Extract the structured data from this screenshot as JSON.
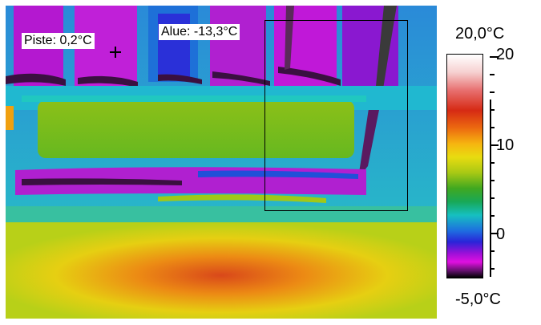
{
  "thermal_image": {
    "spot": {
      "label": "Piste: 0,2°C",
      "icon": "crosshair-icon"
    },
    "area": {
      "label": "Alue: -13,3°C"
    }
  },
  "color_scale": {
    "max_label": "20,0°C",
    "min_label": "-5,0°C",
    "ticks": [
      "20",
      "10",
      "0"
    ],
    "palette": [
      "#ffffff",
      "#d62a14",
      "#f6b510",
      "#a8c814",
      "#18a858",
      "#16c0c0",
      "#2a24d8",
      "#e010e0",
      "#000000"
    ]
  }
}
